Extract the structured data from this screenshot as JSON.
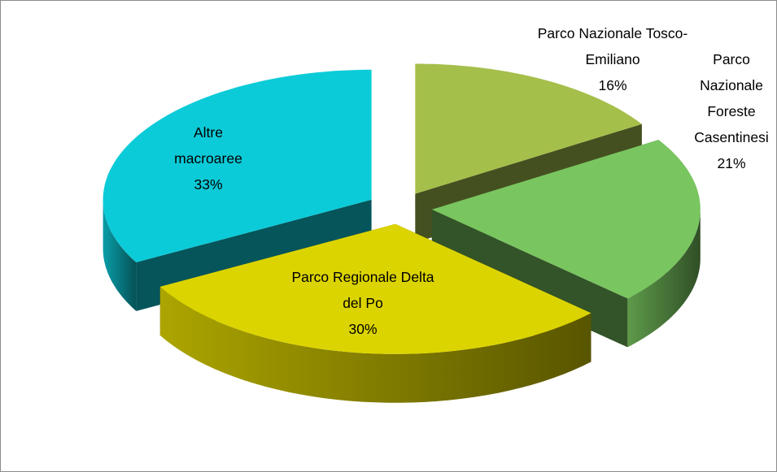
{
  "chart_data": {
    "type": "pie3d",
    "categories": [
      "Parco Nazionale Tosco-Emiliano",
      "Parco Nazionale Foreste Casentinesi",
      "Parco Regionale Delta del Po",
      "Altre macroaree"
    ],
    "values": [
      16,
      21,
      30,
      33
    ],
    "value_labels": [
      "16%",
      "21%",
      "30%",
      "33%"
    ],
    "colors": [
      "#a5bf4b",
      "#79c55f",
      "#dcd400",
      "#0ccbd8"
    ],
    "exploded": true
  }
}
